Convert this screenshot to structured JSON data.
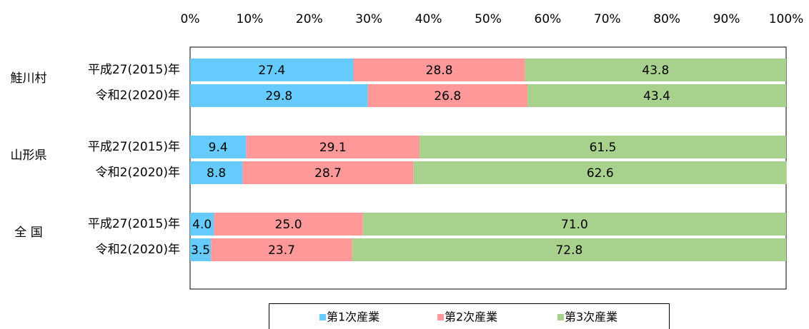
{
  "chart_data": {
    "type": "stacked-bar-horizontal",
    "groups": [
      "鮭川村",
      "山形県",
      "全 国"
    ],
    "categories": [
      "平成27(2015)年",
      "令和2(2020)年",
      "平成27(2015)年",
      "令和2(2020)年",
      "平成27(2015)年",
      "令和2(2020)年"
    ],
    "series": [
      {
        "name": "第1次産業",
        "color": "#66ccff",
        "values": [
          27.4,
          29.8,
          9.4,
          8.8,
          4.0,
          3.5
        ],
        "value_labels": [
          "27.4",
          "29.8",
          "9.4",
          "8.8",
          "4.0",
          "3.5"
        ]
      },
      {
        "name": "第2次産業",
        "color": "#ff9999",
        "values": [
          28.8,
          26.8,
          29.1,
          28.7,
          25.0,
          23.7
        ],
        "value_labels": [
          "28.8",
          "26.8",
          "29.1",
          "28.7",
          "25.0",
          "23.7"
        ]
      },
      {
        "name": "第3次産業",
        "color": "#a9d18e",
        "values": [
          43.8,
          43.4,
          61.5,
          62.6,
          71.0,
          72.8
        ],
        "value_labels": [
          "43.8",
          "43.4",
          "61.5",
          "62.6",
          "71.0",
          "72.8"
        ]
      }
    ],
    "xlim": [
      0,
      100
    ],
    "xticks": [
      {
        "value": 0,
        "label": "0%"
      },
      {
        "value": 10,
        "label": "10%"
      },
      {
        "value": 20,
        "label": "20%"
      },
      {
        "value": 30,
        "label": "30%"
      },
      {
        "value": 40,
        "label": "40%"
      },
      {
        "value": 50,
        "label": "50%"
      },
      {
        "value": 60,
        "label": "60%"
      },
      {
        "value": 70,
        "label": "70%"
      },
      {
        "value": 80,
        "label": "80%"
      },
      {
        "value": 90,
        "label": "90%"
      },
      {
        "value": 100,
        "label": "100%"
      }
    ],
    "grid": false
  }
}
